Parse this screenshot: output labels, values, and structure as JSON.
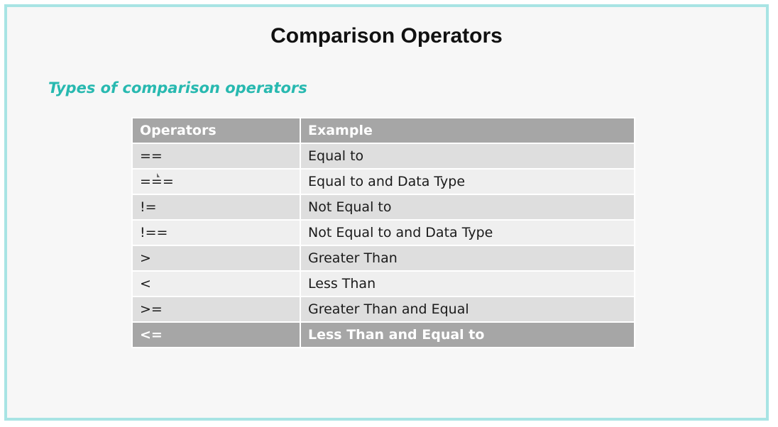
{
  "slide": {
    "title": "Comparison Operators",
    "subtitle": "Types of comparison operators",
    "accent_color": "#28b9b0",
    "frame_color": "#a8e4e4"
  },
  "table": {
    "headers": [
      "Operators",
      "Example"
    ],
    "rows": [
      {
        "operator": "==",
        "example": "Equal to"
      },
      {
        "operator": "===",
        "example": "Equal to and Data Type"
      },
      {
        "operator": "!=",
        "example": "Not Equal to"
      },
      {
        "operator": "!==",
        "example": "Not Equal to and Data Type"
      },
      {
        "operator": ">",
        "example": "Greater Than"
      },
      {
        "operator": "<",
        "example": "Less Than"
      },
      {
        "operator": ">=",
        "example": "Greater Than and Equal"
      },
      {
        "operator": "<=",
        "example": "Less Than and Equal to"
      }
    ]
  }
}
